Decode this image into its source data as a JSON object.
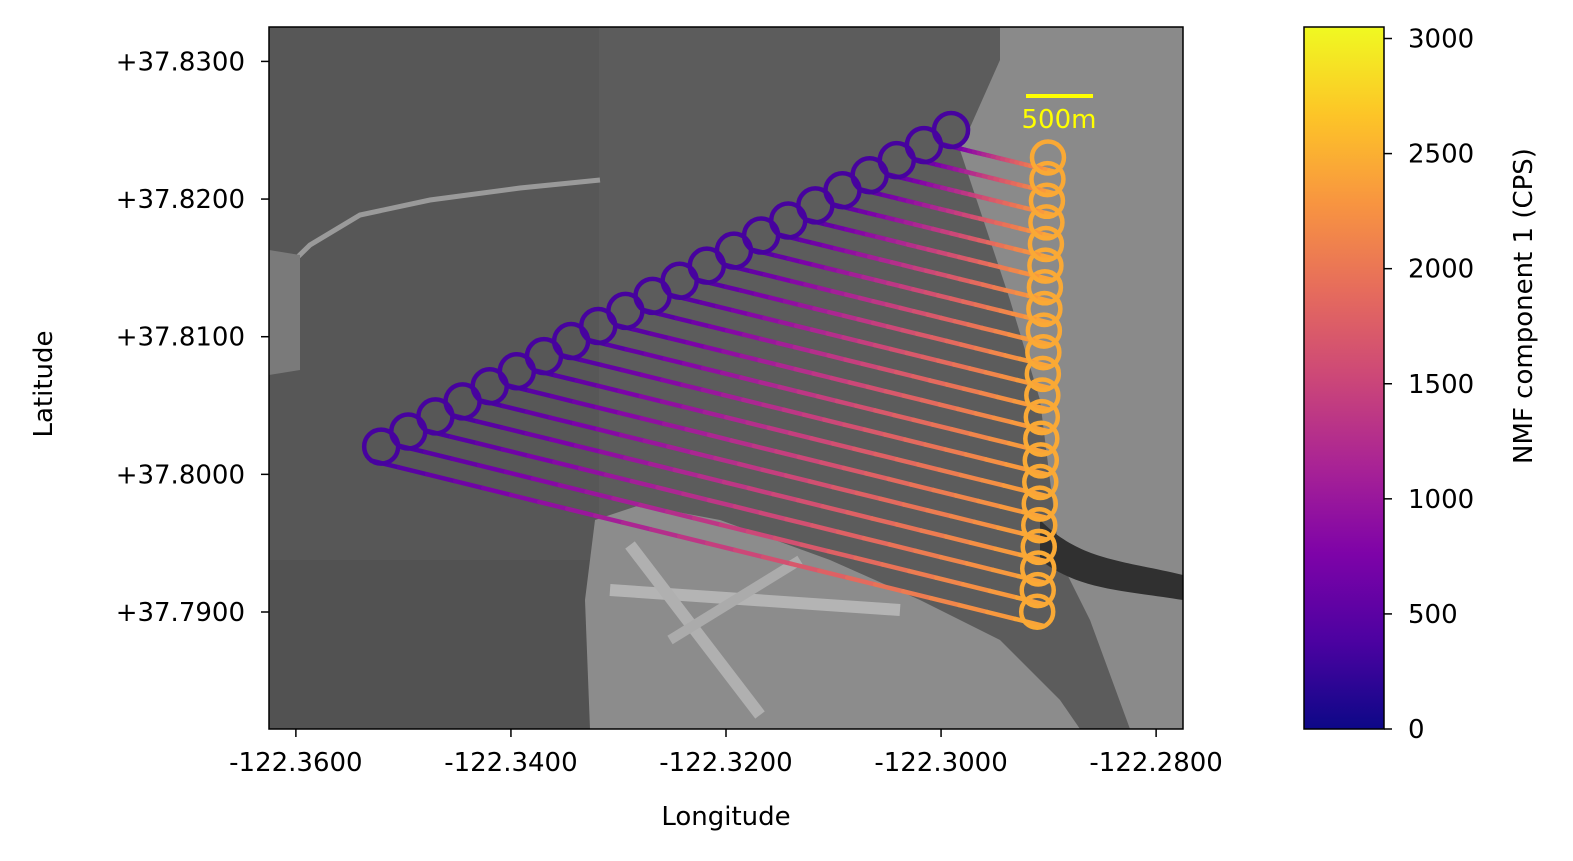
{
  "chart_data": {
    "type": "scatter",
    "title": "",
    "xlabel": "Longitude",
    "ylabel": "Latitude",
    "xlim": [
      -122.3625,
      -122.2775
    ],
    "ylim": [
      37.7815,
      37.8325
    ],
    "x_ticks": [
      -122.36,
      -122.34,
      -122.32,
      -122.3,
      -122.28
    ],
    "x_tick_labels": [
      "-122.3600",
      "-122.3400",
      "-122.3200",
      "-122.3000",
      "-122.2800"
    ],
    "y_ticks": [
      37.83,
      37.82,
      37.81,
      37.8,
      37.79
    ],
    "y_tick_labels": [
      "+37.8300",
      "+37.8200",
      "+37.8100",
      "+37.8000",
      "+37.7900"
    ],
    "background": "grayscale satellite image (bay water, bridge, airport, city)",
    "grid": false,
    "scale_bar": {
      "label": "500m",
      "color": "#ffff00"
    },
    "colorbar": {
      "label": "NMF component 1 (CPS)",
      "range": [
        0,
        3050
      ],
      "ticks": [
        0,
        500,
        1000,
        1500,
        2000,
        2500,
        3000
      ],
      "tick_labels": [
        "0",
        "500",
        "1000",
        "1500",
        "2000",
        "2500",
        "3000"
      ],
      "colormap": "plasma"
    },
    "flight_lines": {
      "count": 22,
      "west_end_lon_range": [
        -122.353,
        -122.3
      ],
      "west_end_lat_range": [
        37.801,
        37.824
      ],
      "east_end_lon_range": [
        -122.2905,
        -122.2895
      ],
      "east_end_lat_range": [
        37.789,
        37.822
      ],
      "value_west": 350,
      "value_east": 2450
    }
  }
}
